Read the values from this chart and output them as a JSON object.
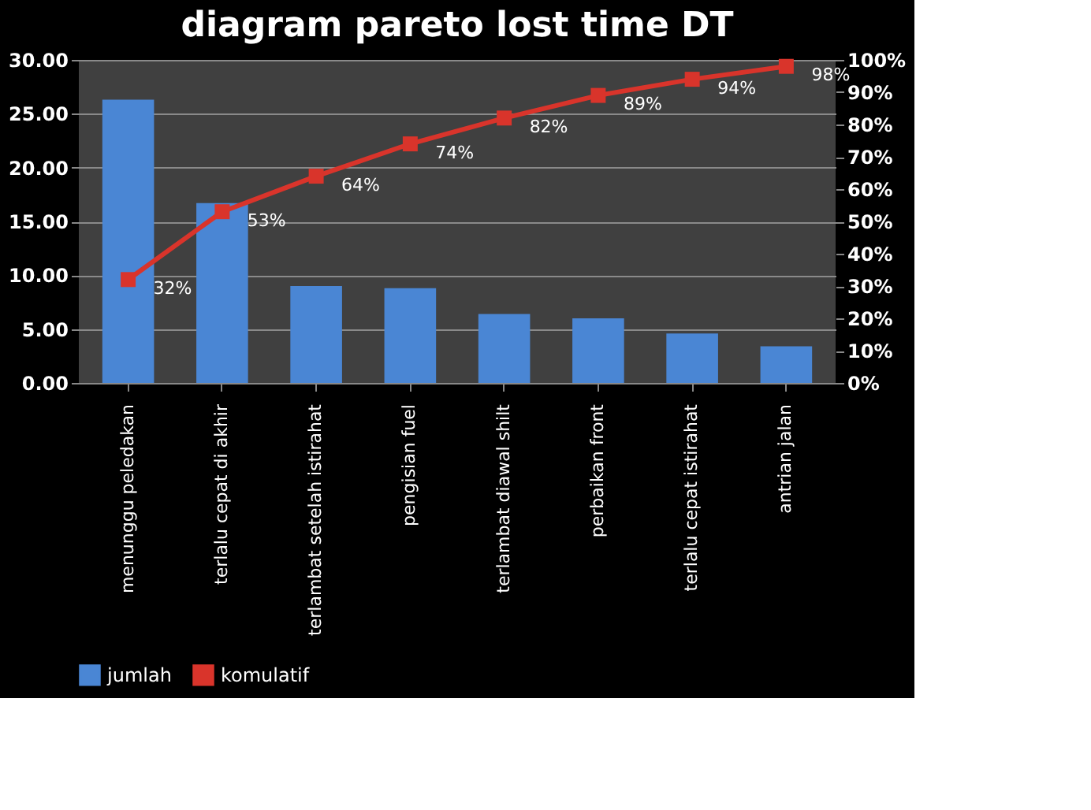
{
  "chart_data": {
    "type": "bar",
    "title": "diagram pareto lost time DT",
    "categories": [
      "menunggu peledakan",
      "terlalu cepat di akhir",
      "terlambat setelah istirahat",
      "pengisian fuel",
      "terlambat diawal shilt",
      "perbaikan front",
      "terlalu cepat istirahat",
      "antrian jalan"
    ],
    "series": [
      {
        "name": "jumlah",
        "type": "bar",
        "color": "#4a86d4",
        "values": [
          26.3,
          16.7,
          9.0,
          8.8,
          6.4,
          6.0,
          4.6,
          3.4
        ]
      },
      {
        "name": "komulatif",
        "type": "line",
        "axis": "y2",
        "color": "#d9342b",
        "marker": "square",
        "values": [
          32,
          53,
          64,
          74,
          82,
          89,
          94,
          98
        ],
        "value_labels": [
          "32%",
          "53%",
          "64%",
          "74%",
          "82%",
          "89%",
          "94%",
          "98%"
        ]
      }
    ],
    "ylim": [
      0,
      30
    ],
    "yticks": [
      {
        "value": 0,
        "label": "0.00"
      },
      {
        "value": 5,
        "label": "5.00"
      },
      {
        "value": 10,
        "label": "10.00"
      },
      {
        "value": 15,
        "label": "15.00"
      },
      {
        "value": 20,
        "label": "20.00"
      },
      {
        "value": 25,
        "label": "25.00"
      },
      {
        "value": 30,
        "label": "30.00"
      }
    ],
    "y2lim": [
      0,
      100
    ],
    "y2ticks": [
      {
        "value": 0,
        "label": "0%"
      },
      {
        "value": 10,
        "label": "10%"
      },
      {
        "value": 20,
        "label": "20%"
      },
      {
        "value": 30,
        "label": "30%"
      },
      {
        "value": 40,
        "label": "40%"
      },
      {
        "value": 50,
        "label": "50%"
      },
      {
        "value": 60,
        "label": "60%"
      },
      {
        "value": 70,
        "label": "70%"
      },
      {
        "value": 80,
        "label": "80%"
      },
      {
        "value": 90,
        "label": "90%"
      },
      {
        "value": 100,
        "label": "100%"
      }
    ],
    "grid": "y",
    "legend": "bottom"
  }
}
